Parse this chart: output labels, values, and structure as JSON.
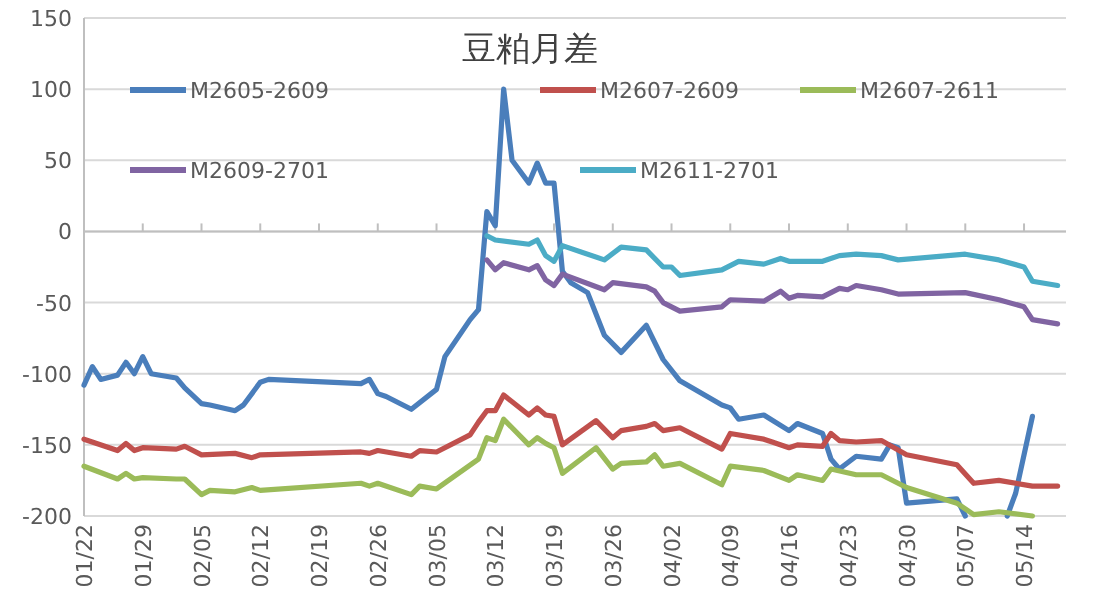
{
  "chart_data": {
    "type": "line",
    "title": "豆粕月差",
    "ylim": [
      -200,
      150
    ],
    "yticks": [
      -200,
      -150,
      -100,
      -50,
      0,
      50,
      100,
      150
    ],
    "xlim": [
      "--01-22",
      "--05-19"
    ],
    "xticks": [
      {
        "value": "--01-22",
        "label": "01/22"
      },
      {
        "value": "--01-29",
        "label": "01/29"
      },
      {
        "value": "--02-05",
        "label": "02/05"
      },
      {
        "value": "--02-12",
        "label": "02/12"
      },
      {
        "value": "--02-19",
        "label": "02/19"
      },
      {
        "value": "--02-26",
        "label": "02/26"
      },
      {
        "value": "--03-05",
        "label": "03/05"
      },
      {
        "value": "--03-12",
        "label": "03/12"
      },
      {
        "value": "--03-19",
        "label": "03/19"
      },
      {
        "value": "--03-26",
        "label": "03/26"
      },
      {
        "value": "--04-02",
        "label": "04/02"
      },
      {
        "value": "--04-09",
        "label": "04/09"
      },
      {
        "value": "--04-16",
        "label": "04/16"
      },
      {
        "value": "--04-23",
        "label": "04/23"
      },
      {
        "value": "--04-30",
        "label": "04/30"
      },
      {
        "value": "--05-07",
        "label": "05/07"
      },
      {
        "value": "--05-14",
        "label": "05/14"
      }
    ],
    "grid": "y",
    "legend": "top",
    "marker": "none",
    "line_style": "solid",
    "series": [
      {
        "name": "M2605-2609",
        "color": "#4a7ebb",
        "x": [
          "--01-22",
          "--01-23",
          "--01-24",
          "--01-26",
          "--01-27",
          "--01-28",
          "--01-29",
          "--01-30",
          "--02-02",
          "--02-03",
          "--02-05",
          "--02-06",
          "--02-09",
          "--02-10",
          "--02-12",
          "--02-13",
          "--02-24",
          "--02-25",
          "--02-26",
          "--02-27",
          "--03-02",
          "--03-05",
          "--03-06",
          "--03-09",
          "--03-10",
          "--03-11",
          "--03-12",
          "--03-13",
          "--03-14",
          "--03-16",
          "--03-17",
          "--03-18",
          "--03-19",
          "--03-20",
          "--03-21",
          "--03-23",
          "--03-25",
          "--03-27",
          "--03-30",
          "--04-01",
          "--04-03",
          "--04-08",
          "--04-09",
          "--04-10",
          "--04-13",
          "--04-16",
          "--04-17",
          "--04-20",
          "--04-21",
          "--04-22",
          "--04-24",
          "--04-27",
          "--04-28",
          "--04-29",
          "--04-30",
          "--05-06",
          "--05-07",
          "--05-08",
          "--05-11",
          "--05-12",
          "--05-13",
          "--05-15"
        ],
        "values": [
          -108,
          -95,
          -104,
          -101,
          -92,
          -100,
          -88,
          -100,
          -103,
          -110,
          -121,
          -122,
          -126,
          -122,
          -106,
          -104,
          -107,
          -104,
          -114,
          -116,
          -125,
          -111,
          -88,
          -62,
          -55,
          14,
          4,
          100,
          50,
          34,
          48,
          34,
          34,
          -28,
          -36,
          -43,
          -73,
          -85,
          -66,
          -90,
          -105,
          -122,
          -124,
          -132,
          -129,
          -140,
          -135,
          -142,
          -160,
          -167,
          -158,
          -160,
          -150,
          -152,
          -191,
          -188,
          -200,
          null,
          null,
          -200,
          -184,
          -130
        ]
      },
      {
        "name": "M2607-2609",
        "color": "#c0504d",
        "x": [
          "--01-22",
          "--01-26",
          "--01-27",
          "--01-28",
          "--01-29",
          "--02-02",
          "--02-03",
          "--02-05",
          "--02-09",
          "--02-11",
          "--02-12",
          "--02-24",
          "--02-25",
          "--02-26",
          "--03-02",
          "--03-03",
          "--03-05",
          "--03-09",
          "--03-10",
          "--03-11",
          "--03-12",
          "--03-13",
          "--03-16",
          "--03-17",
          "--03-18",
          "--03-19",
          "--03-20",
          "--03-24",
          "--03-26",
          "--03-27",
          "--03-30",
          "--03-31",
          "--04-01",
          "--04-03",
          "--04-08",
          "--04-09",
          "--04-13",
          "--04-14",
          "--04-16",
          "--04-17",
          "--04-20",
          "--04-21",
          "--04-22",
          "--04-24",
          "--04-27",
          "--04-30",
          "--05-06",
          "--05-08",
          "--05-11",
          "--05-15",
          "--05-18"
        ],
        "values": [
          -146,
          -154,
          -149,
          -154,
          -152,
          -153,
          -151,
          -157,
          -156,
          -159,
          -157,
          -155,
          -156,
          -154,
          -158,
          -154,
          -155,
          -143,
          -134,
          -126,
          -126,
          -115,
          -129,
          -124,
          -129,
          -130,
          -150,
          -133,
          -145,
          -140,
          -137,
          -135,
          -140,
          -138,
          -153,
          -142,
          -146,
          -148,
          -152,
          -150,
          -151,
          -142,
          -147,
          -148,
          -147,
          -157,
          -164,
          -177,
          -175,
          -179,
          -179
        ]
      },
      {
        "name": "M2607-2611",
        "color": "#9bbb59",
        "x": [
          "--01-22",
          "--01-26",
          "--01-27",
          "--01-28",
          "--01-29",
          "--02-02",
          "--02-03",
          "--02-05",
          "--02-06",
          "--02-09",
          "--02-11",
          "--02-12",
          "--02-24",
          "--02-25",
          "--02-26",
          "--03-02",
          "--03-03",
          "--03-05",
          "--03-10",
          "--03-11",
          "--03-12",
          "--03-13",
          "--03-16",
          "--03-17",
          "--03-18",
          "--03-19",
          "--03-20",
          "--03-24",
          "--03-26",
          "--03-27",
          "--03-30",
          "--03-31",
          "--04-01",
          "--04-03",
          "--04-08",
          "--04-09",
          "--04-13",
          "--04-16",
          "--04-17",
          "--04-20",
          "--04-21",
          "--04-24",
          "--04-27",
          "--04-30",
          "--05-06",
          "--05-08",
          "--05-11",
          "--05-15"
        ],
        "values": [
          -165,
          -174,
          -170,
          -174,
          -173,
          -174,
          -174,
          -185,
          -182,
          -183,
          -180,
          -182,
          -177,
          -179,
          -177,
          -185,
          -179,
          -181,
          -160,
          -145,
          -147,
          -132,
          -150,
          -145,
          -149,
          -152,
          -170,
          -152,
          -167,
          -163,
          -162,
          -157,
          -165,
          -163,
          -178,
          -165,
          -168,
          -175,
          -171,
          -175,
          -167,
          -171,
          -171,
          -180,
          -191,
          -199,
          -197,
          -200
        ]
      },
      {
        "name": "M2609-2701",
        "color": "#8064a2",
        "x": [
          "--03-11",
          "--03-12",
          "--03-13",
          "--03-16",
          "--03-17",
          "--03-18",
          "--03-19",
          "--03-20",
          "--03-25",
          "--03-26",
          "--03-30",
          "--03-31",
          "--04-01",
          "--04-03",
          "--04-08",
          "--04-09",
          "--04-13",
          "--04-15",
          "--04-16",
          "--04-17",
          "--04-20",
          "--04-22",
          "--04-23",
          "--04-24",
          "--04-27",
          "--04-29",
          "--05-07",
          "--05-11",
          "--05-14",
          "--05-15",
          "--05-18"
        ],
        "values": [
          -20,
          -27,
          -22,
          -27,
          -24,
          -34,
          -38,
          -30,
          -41,
          -36,
          -39,
          -42,
          -50,
          -56,
          -53,
          -48,
          -49,
          -42,
          -47,
          -45,
          -46,
          -40,
          -41,
          -38,
          -41,
          -44,
          -43,
          -48,
          -53,
          -62,
          -65
        ]
      },
      {
        "name": "M2611-2701",
        "color": "#4bacc6",
        "x": [
          "--03-11",
          "--03-12",
          "--03-16",
          "--03-17",
          "--03-18",
          "--03-19",
          "--03-20",
          "--03-25",
          "--03-27",
          "--03-30",
          "--04-01",
          "--04-02",
          "--04-03",
          "--04-08",
          "--04-10",
          "--04-13",
          "--04-15",
          "--04-16",
          "--04-20",
          "--04-22",
          "--04-24",
          "--04-27",
          "--04-29",
          "--05-07",
          "--05-11",
          "--05-14",
          "--05-15",
          "--05-18"
        ],
        "values": [
          -3,
          -6,
          -9,
          -6,
          -17,
          -21,
          -10,
          -20,
          -11,
          -13,
          -25,
          -25,
          -31,
          -27,
          -21,
          -23,
          -19,
          -21,
          -21,
          -17,
          -16,
          -17,
          -20,
          -16,
          -20,
          -25,
          -35,
          -38
        ]
      }
    ]
  }
}
